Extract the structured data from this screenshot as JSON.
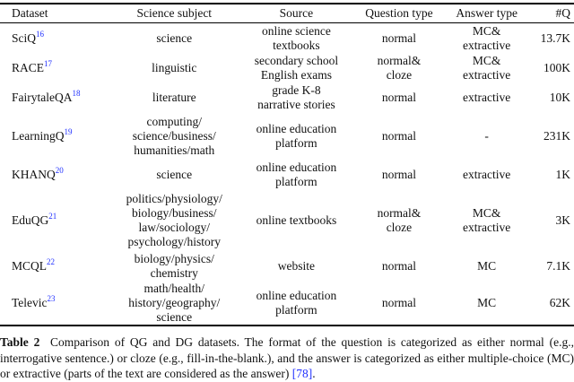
{
  "table": {
    "headers": [
      "Dataset",
      "Science subject",
      "Source",
      "Question type",
      "Answer type",
      "#Q"
    ],
    "rows": [
      {
        "dataset": "SciQ",
        "ref": "16",
        "subject": [
          "science"
        ],
        "source": [
          "online science",
          "textbooks"
        ],
        "qtype": [
          "normal"
        ],
        "atype": [
          "MC&",
          "extractive"
        ],
        "count": "13.7K"
      },
      {
        "dataset": "RACE",
        "ref": "17",
        "subject": [
          "linguistic"
        ],
        "source": [
          "secondary school",
          "English exams"
        ],
        "qtype": [
          "normal&",
          "cloze"
        ],
        "atype": [
          "MC&",
          "extractive"
        ],
        "count": "100K"
      },
      {
        "dataset": "FairytaleQA",
        "ref": "18",
        "subject": [
          "literature"
        ],
        "source": [
          "grade K-8",
          "narrative stories"
        ],
        "qtype": [
          "normal"
        ],
        "atype": [
          "extractive"
        ],
        "count": "10K"
      },
      {
        "dataset": "LearningQ",
        "ref": "19",
        "subject": [
          "computing/",
          "science/business/",
          "humanities/math"
        ],
        "source": [
          "online education",
          "platform"
        ],
        "qtype": [
          "normal"
        ],
        "atype": [
          "-"
        ],
        "count": "231K"
      },
      {
        "dataset": "KHANQ",
        "ref": "20",
        "subject": [
          "science"
        ],
        "source": [
          "online education",
          "platform"
        ],
        "qtype": [
          "normal"
        ],
        "atype": [
          "extractive"
        ],
        "count": "1K"
      },
      {
        "dataset": "EduQG",
        "ref": "21",
        "subject": [
          "politics/physiology/",
          "biology/business/",
          "law/sociology/",
          "psychology/history"
        ],
        "source": [
          "online textbooks"
        ],
        "qtype": [
          "normal&",
          "cloze"
        ],
        "atype": [
          "MC&",
          "extractive"
        ],
        "count": "3K"
      },
      {
        "dataset": "MCQL",
        "ref": "22",
        "subject": [
          "biology/physics/",
          "chemistry"
        ],
        "source": [
          "website"
        ],
        "qtype": [
          "normal"
        ],
        "atype": [
          "MC"
        ],
        "count": "7.1K"
      },
      {
        "dataset": "Televic",
        "ref": "23",
        "subject": [
          "math/health/",
          "history/geography/",
          "science"
        ],
        "source": [
          "online education",
          "platform"
        ],
        "qtype": [
          "normal"
        ],
        "atype": [
          "MC"
        ],
        "count": "62K"
      }
    ]
  },
  "caption": {
    "label": "Table 2",
    "text": "Comparison of QG and DG datasets. The format of the question is categorized as either normal (e.g., interrogative sentence.) or cloze (e.g., fill-in-the-blank.), and the answer is categorized as either multiple-choice (MC) or extractive (parts of the text are considered as the answer) ",
    "ref": "[78]",
    "end": "."
  },
  "colors": {
    "link": "#2030ff"
  }
}
